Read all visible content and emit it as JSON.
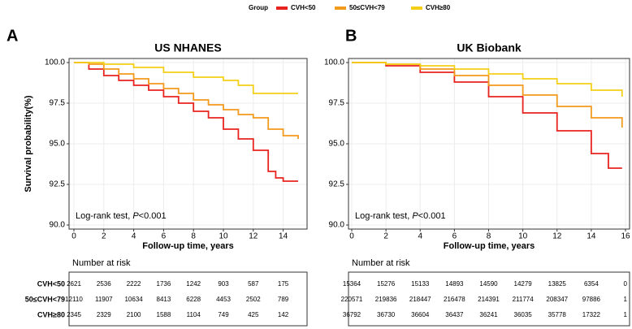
{
  "chart_data": [
    {
      "type": "line",
      "panel": "A",
      "title": "US NHANES",
      "legend_title": "Group",
      "x_label": "Follow-up time, years",
      "y_label": "Survival probability(%)",
      "annotation": [
        "Log-rank test,   ",
        "P",
        "<0.001"
      ],
      "xlim": [
        0,
        15
      ],
      "ylim": [
        90,
        100
      ],
      "xticks": [
        0,
        2,
        4,
        6,
        8,
        10,
        12,
        14
      ],
      "yticks": [
        {
          "value": 90,
          "label": "90.0"
        },
        92.5,
        {
          "value": 95,
          "label": "95.0"
        },
        97.5,
        {
          "value": 100,
          "label": "100.0"
        }
      ],
      "series": [
        {
          "name": "CVH<50",
          "color": "#e8231f",
          "x": [
            0,
            1,
            2,
            3,
            4,
            5,
            6,
            7,
            8,
            9,
            10,
            11,
            12,
            13,
            13.5,
            14,
            15
          ],
          "values": [
            100,
            99.6,
            99.2,
            98.9,
            98.6,
            98.3,
            97.9,
            97.5,
            97.0,
            96.6,
            95.9,
            95.3,
            94.6,
            93.3,
            92.9,
            92.7,
            92.7
          ]
        },
        {
          "name": "50≤CVH<79",
          "color": "#f29a1c",
          "x": [
            0,
            1,
            2,
            3,
            4,
            5,
            6,
            7,
            8,
            9,
            10,
            11,
            12,
            13,
            14,
            15
          ],
          "values": [
            100,
            99.9,
            99.6,
            99.3,
            99.0,
            98.7,
            98.4,
            98.1,
            97.7,
            97.4,
            97.1,
            96.8,
            96.6,
            95.9,
            95.5,
            95.3
          ]
        },
        {
          "name": "CVH≥80",
          "color": "#f3cf17",
          "x": [
            0,
            2,
            4,
            6,
            8,
            10,
            11,
            12,
            13,
            14,
            15
          ],
          "values": [
            100,
            99.9,
            99.7,
            99.4,
            99.1,
            98.9,
            98.6,
            98.1,
            98.1,
            98.1,
            98.1
          ]
        }
      ],
      "risk_table": {
        "title": "Number at risk",
        "rows": [
          {
            "label": "CVH<50",
            "values": [
              2621,
              2536,
              2222,
              1736,
              1242,
              903,
              587,
              175
            ]
          },
          {
            "label": "50≤CVH<79",
            "values": [
              12110,
              11907,
              10634,
              8413,
              6228,
              4453,
              2502,
              789
            ]
          },
          {
            "label": "CVH≥80",
            "values": [
              2345,
              2329,
              2100,
              1588,
              1104,
              749,
              425,
              142
            ]
          }
        ]
      }
    },
    {
      "type": "line",
      "panel": "B",
      "title": "UK Biobank",
      "x_label": "Follow-up time, years",
      "annotation": [
        "Log-rank test,   ",
        "P",
        "<0.001"
      ],
      "xlim": [
        0,
        16
      ],
      "ylim": [
        90,
        100
      ],
      "xticks": [
        0,
        2,
        4,
        6,
        8,
        10,
        12,
        14,
        16
      ],
      "yticks": [
        {
          "value": 90,
          "label": "90.0"
        },
        92.5,
        {
          "value": 95,
          "label": "95.0"
        },
        97.5,
        {
          "value": 100,
          "label": "100.0"
        }
      ],
      "series": [
        {
          "name": "CVH<50",
          "color": "#e8231f",
          "x": [
            0,
            2,
            4,
            6,
            8,
            10,
            12,
            14,
            15,
            15.8
          ],
          "values": [
            100,
            99.8,
            99.4,
            98.8,
            97.9,
            96.9,
            95.8,
            94.4,
            93.5,
            93.5
          ]
        },
        {
          "name": "50≤CVH<79",
          "color": "#f29a1c",
          "x": [
            0,
            2,
            4,
            6,
            8,
            10,
            12,
            14,
            15.8
          ],
          "values": [
            100,
            99.9,
            99.6,
            99.2,
            98.6,
            98.0,
            97.3,
            96.6,
            96.0
          ]
        },
        {
          "name": "CVH≥80",
          "color": "#f3cf17",
          "x": [
            0,
            2,
            4,
            6,
            8,
            10,
            12,
            14,
            15.8
          ],
          "values": [
            100,
            99.9,
            99.8,
            99.6,
            99.3,
            99.0,
            98.7,
            98.3,
            97.9
          ]
        }
      ],
      "risk_table": {
        "title": "Number at risk",
        "rows": [
          {
            "values": [
              15364,
              15276,
              15133,
              14893,
              14590,
              14279,
              13825,
              6354,
              0
            ]
          },
          {
            "values": [
              220571,
              219836,
              218447,
              216478,
              214391,
              211774,
              208347,
              97886,
              1
            ]
          },
          {
            "values": [
              36792,
              36730,
              36604,
              36437,
              36241,
              36035,
              35778,
              17322,
              1
            ]
          }
        ]
      }
    }
  ]
}
